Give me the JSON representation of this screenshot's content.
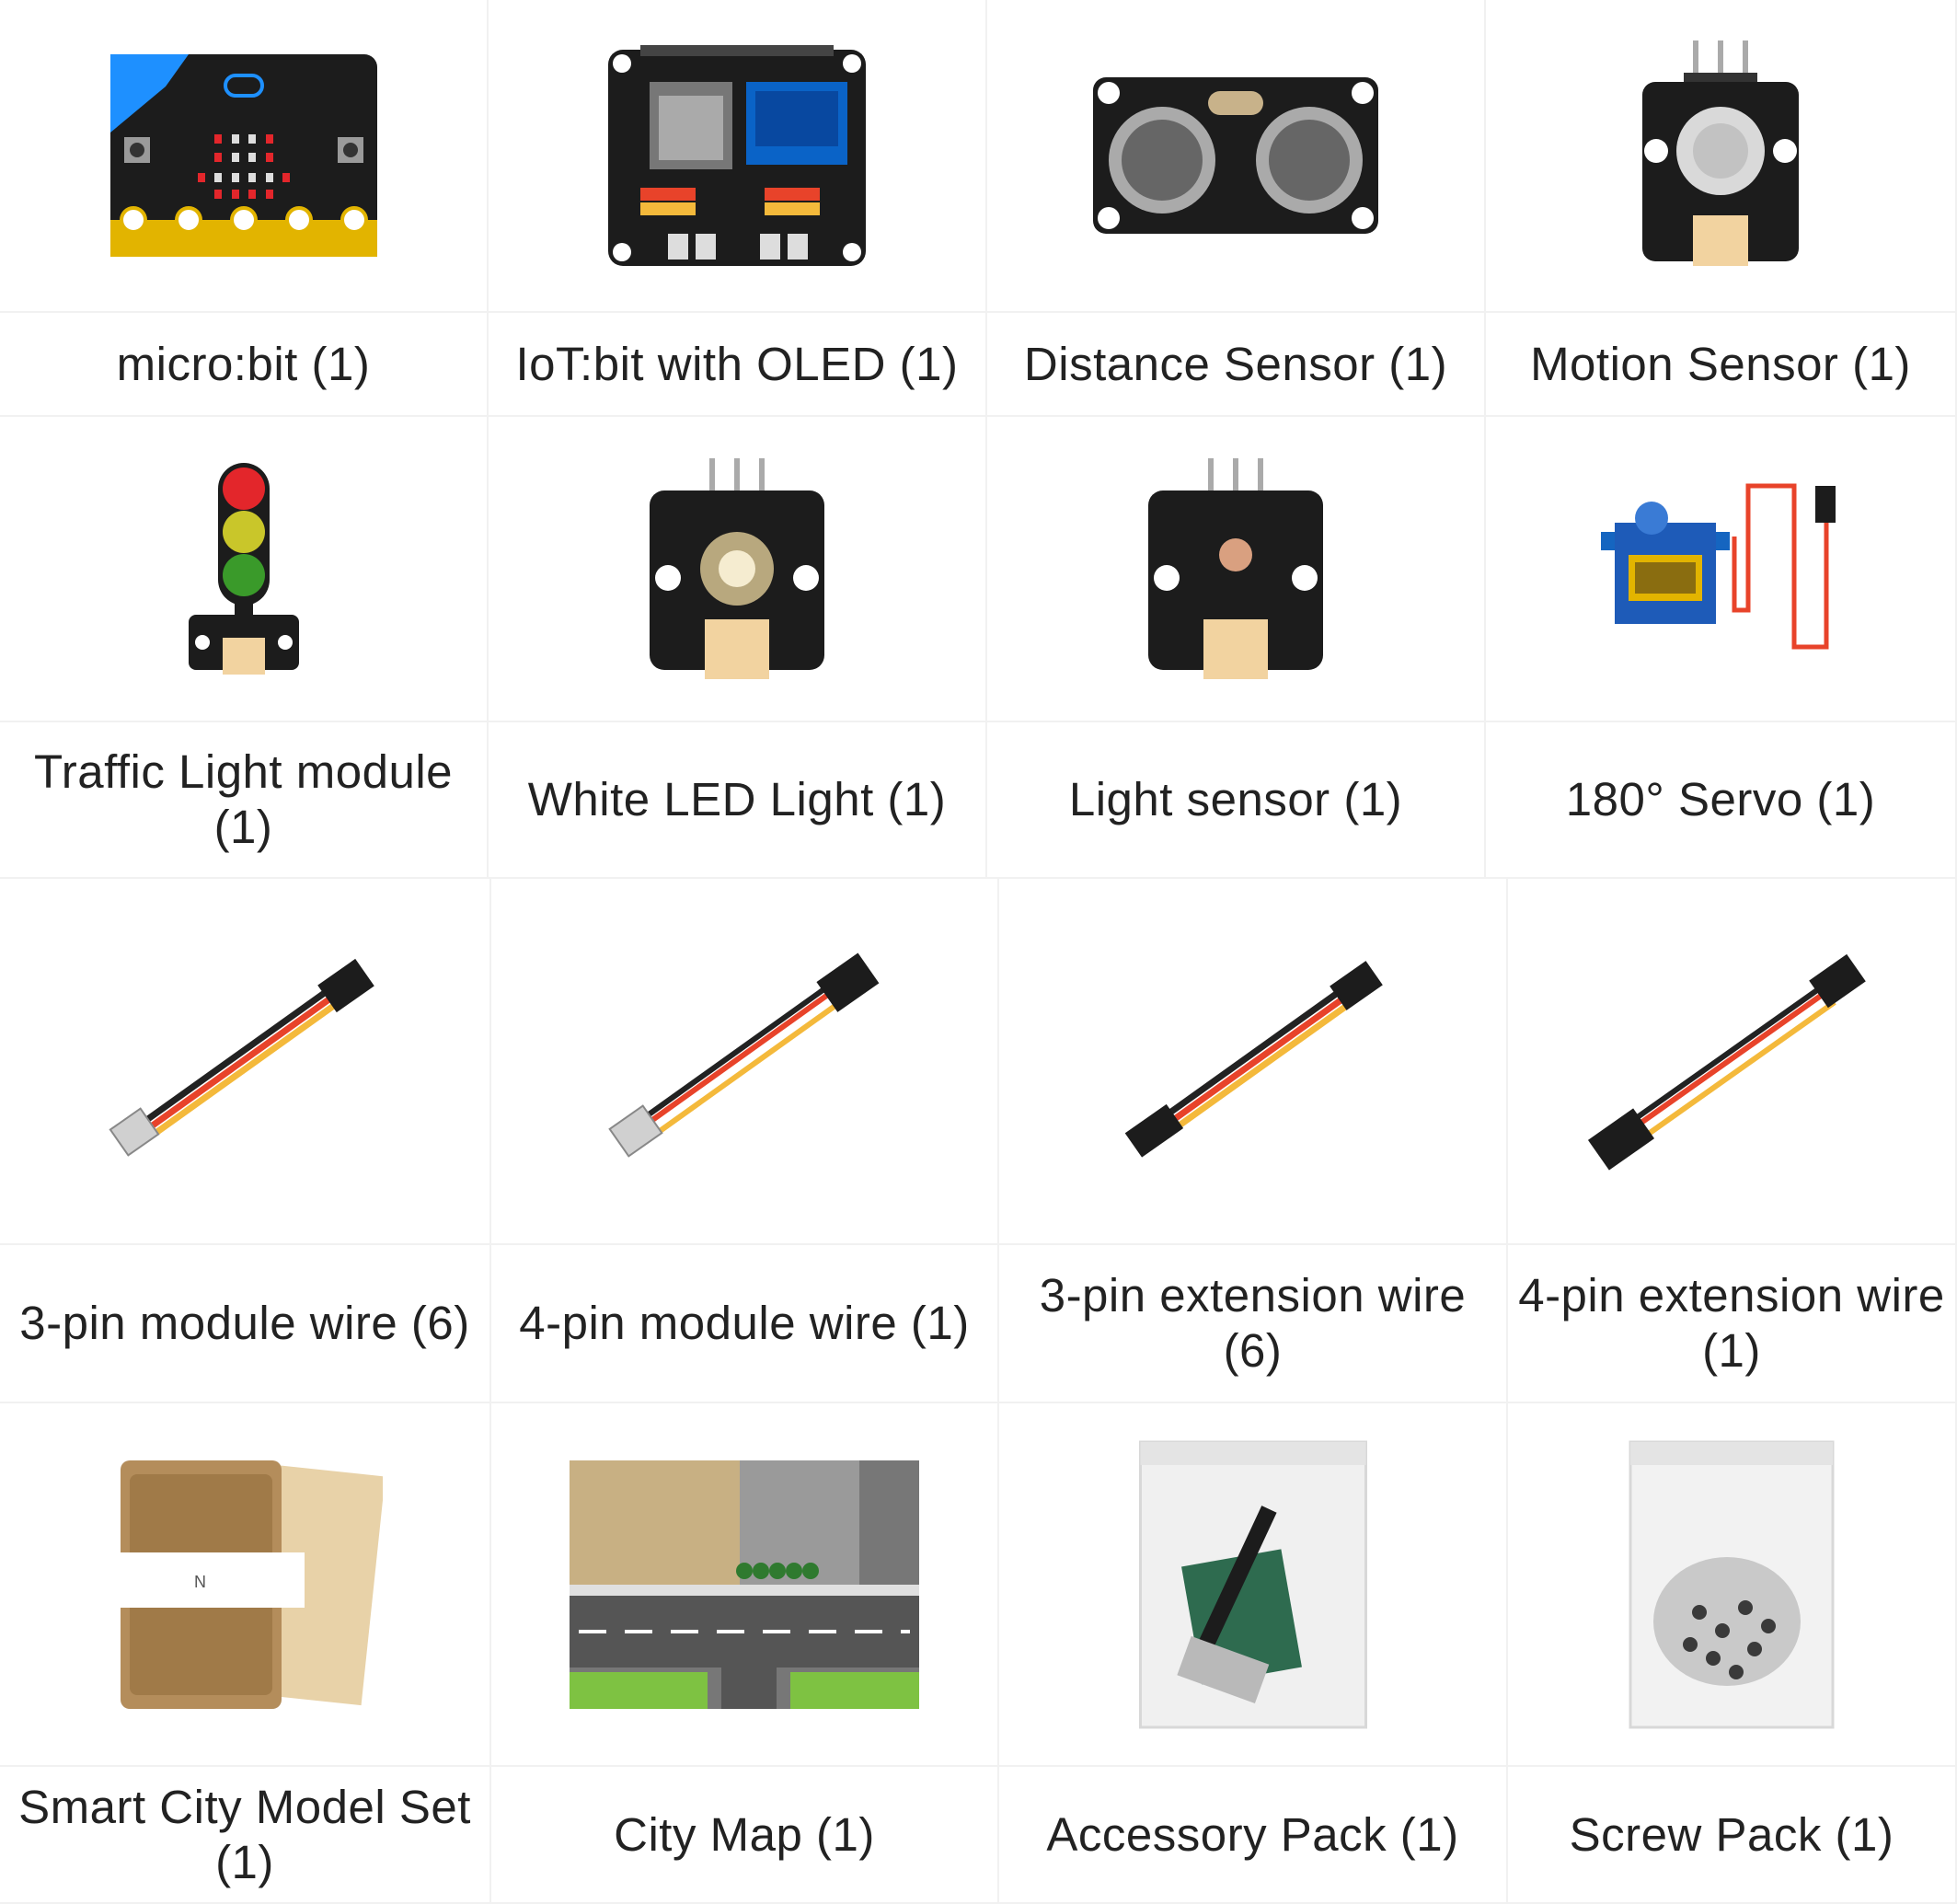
{
  "items": [
    {
      "label": "micro:bit (1)",
      "icon": "microbit-board"
    },
    {
      "label": "IoT:bit with OLED (1)",
      "icon": "iotbit-oled-board"
    },
    {
      "label": "Distance Sensor (1)",
      "icon": "ultrasonic-sensor"
    },
    {
      "label": "Motion Sensor (1)",
      "icon": "pir-motion-sensor"
    },
    {
      "label": "Traffic Light module (1)",
      "icon": "traffic-light-module"
    },
    {
      "label": "White LED Light (1)",
      "icon": "white-led-module"
    },
    {
      "label": "Light sensor (1)",
      "icon": "light-sensor-module"
    },
    {
      "label": "180° Servo (1)",
      "icon": "servo-motor"
    },
    {
      "label": "3-pin module wire (6)",
      "icon": "3pin-module-wire"
    },
    {
      "label": "4-pin module wire (1)",
      "icon": "4pin-module-wire"
    },
    {
      "label": "3-pin extension wire (6)",
      "icon": "3pin-extension-wire"
    },
    {
      "label": "4-pin extension wire (1)",
      "icon": "4pin-extension-wire"
    },
    {
      "label": "Smart City Model Set (1)",
      "icon": "cardboard-model-set"
    },
    {
      "label": "City Map (1)",
      "icon": "city-map"
    },
    {
      "label": "Accessory Pack (1)",
      "icon": "accessory-bag"
    },
    {
      "label": "Screw Pack (1)",
      "icon": "screw-bag"
    }
  ],
  "colors": {
    "board_black": "#1c1c1c",
    "gold": "#e2b400",
    "microbit_blue": "#1e90ff",
    "led_red": "#e3262b",
    "oled_blue": "#0a63c7",
    "connector": "#f2d3a0",
    "wire_black": "#222222",
    "wire_red": "#e8432a",
    "wire_yellow": "#f4b93b",
    "cardboard": "#b48d5b",
    "map_tan": "#c8b083",
    "road_grey": "#555555",
    "grass_green": "#7ec242"
  }
}
